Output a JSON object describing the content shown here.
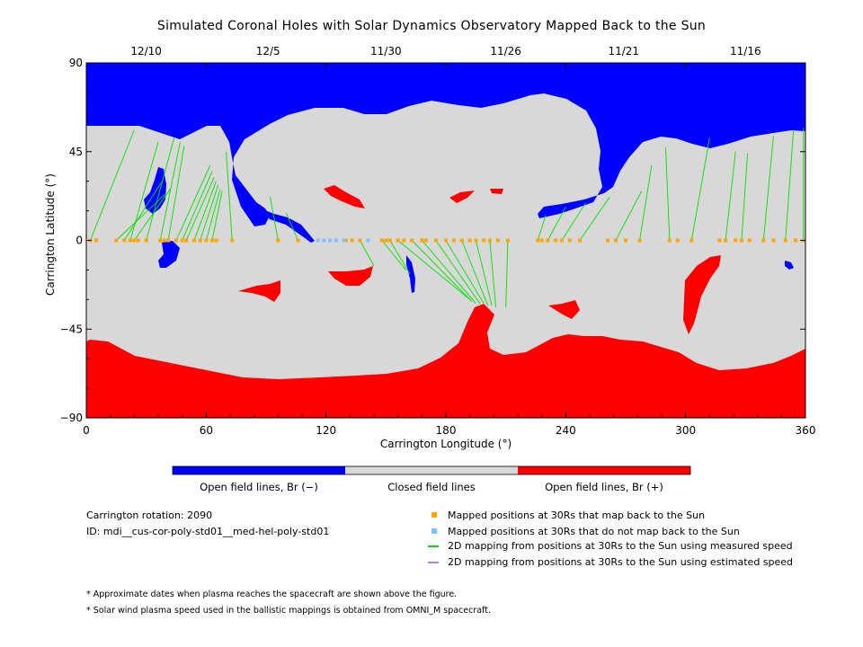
{
  "title": "Simulated Coronal Holes with Solar Dynamics Observatory Mapped Back to the Sun",
  "chart_data": {
    "type": "scatter",
    "xlabel": "Carrington Longitude (°)",
    "ylabel": "Carrington Latitude (°)",
    "xlim": [
      0,
      360
    ],
    "ylim": [
      -90,
      90
    ],
    "x_ticks": [
      "0",
      "60",
      "120",
      "180",
      "240",
      "300",
      "360"
    ],
    "y_ticks": [
      "90",
      "45",
      "0",
      "-45",
      "-90"
    ],
    "x_tick_values": [
      0,
      60,
      120,
      180,
      240,
      300,
      360
    ],
    "y_tick_values": [
      90,
      45,
      0,
      -45,
      -90
    ],
    "top_axis_dates": [
      {
        "date": "12/10",
        "longitude": 30
      },
      {
        "date": "12/5",
        "longitude": 91
      },
      {
        "date": "11/30",
        "longitude": 150
      },
      {
        "date": "11/26",
        "longitude": 210
      },
      {
        "date": "11/21",
        "longitude": 269
      },
      {
        "date": "11/16",
        "longitude": 330
      }
    ],
    "colors": {
      "open_negative": "#0000ff",
      "closed": "#d8d8d8",
      "open_positive": "#ff0000",
      "mapped_point": "#ffa500",
      "unmapped_point": "#7fbfff",
      "measured_line": "#00e000",
      "estimated_line": "#b080ff"
    },
    "mapped_positions_30Rs": [
      2,
      5,
      15,
      19,
      22,
      24,
      26,
      30,
      37,
      39,
      41,
      45,
      48,
      50,
      54,
      57,
      60,
      63,
      65,
      73,
      96,
      106,
      130,
      133,
      137,
      148,
      150,
      152,
      156,
      159,
      163,
      168,
      170,
      175,
      180,
      184,
      188,
      192,
      195,
      199,
      202,
      206,
      211,
      226,
      228,
      231,
      235,
      238,
      242,
      247,
      261,
      265,
      270,
      277,
      292,
      296,
      303,
      317,
      320,
      325,
      328,
      332,
      339,
      344,
      350,
      355,
      359
    ],
    "unmapped_positions_30Rs": [
      116,
      119,
      122,
      125,
      129,
      141
    ],
    "footpoints": [
      {
        "from_lon": 2,
        "to_lon": 24,
        "to_lat": 56
      },
      {
        "from_lon": 15,
        "to_lon": 40,
        "to_lat": 24
      },
      {
        "from_lon": 19,
        "to_lon": 38,
        "to_lat": 30
      },
      {
        "from_lon": 22,
        "to_lon": 36,
        "to_lat": 50
      },
      {
        "from_lon": 24,
        "to_lon": 42,
        "to_lat": 26
      },
      {
        "from_lon": 30,
        "to_lon": 44,
        "to_lat": 52
      },
      {
        "from_lon": 37,
        "to_lon": 47,
        "to_lat": 50
      },
      {
        "from_lon": 41,
        "to_lon": 49,
        "to_lat": 48
      },
      {
        "from_lon": 45,
        "to_lon": 62,
        "to_lat": 38
      },
      {
        "from_lon": 48,
        "to_lon": 63,
        "to_lat": 35
      },
      {
        "from_lon": 50,
        "to_lon": 64,
        "to_lat": 32
      },
      {
        "from_lon": 54,
        "to_lon": 65,
        "to_lat": 30
      },
      {
        "from_lon": 57,
        "to_lon": 66,
        "to_lat": 28
      },
      {
        "from_lon": 60,
        "to_lon": 67,
        "to_lat": 26
      },
      {
        "from_lon": 63,
        "to_lon": 68,
        "to_lat": 25
      },
      {
        "from_lon": 73,
        "to_lon": 70,
        "to_lat": 45
      },
      {
        "from_lon": 96,
        "to_lon": 92,
        "to_lat": 22
      },
      {
        "from_lon": 106,
        "to_lon": 100,
        "to_lat": 14
      },
      {
        "from_lon": 137,
        "to_lon": 144,
        "to_lat": -13
      },
      {
        "from_lon": 148,
        "to_lon": 160,
        "to_lat": -15
      },
      {
        "from_lon": 152,
        "to_lon": 162,
        "to_lat": -17
      },
      {
        "from_lon": 156,
        "to_lon": 192,
        "to_lat": -30
      },
      {
        "from_lon": 163,
        "to_lon": 193,
        "to_lat": -31
      },
      {
        "from_lon": 168,
        "to_lon": 195,
        "to_lat": -32
      },
      {
        "from_lon": 175,
        "to_lon": 197,
        "to_lat": -32
      },
      {
        "from_lon": 180,
        "to_lon": 199,
        "to_lat": -32
      },
      {
        "from_lon": 188,
        "to_lon": 201,
        "to_lat": -33
      },
      {
        "from_lon": 195,
        "to_lon": 203,
        "to_lat": -33
      },
      {
        "from_lon": 202,
        "to_lon": 205,
        "to_lat": -34
      },
      {
        "from_lon": 211,
        "to_lon": 210,
        "to_lat": -34
      },
      {
        "from_lon": 226,
        "to_lon": 230,
        "to_lat": 13
      },
      {
        "from_lon": 231,
        "to_lon": 240,
        "to_lat": 17
      },
      {
        "from_lon": 238,
        "to_lon": 250,
        "to_lat": 19
      },
      {
        "from_lon": 247,
        "to_lon": 262,
        "to_lat": 22
      },
      {
        "from_lon": 265,
        "to_lon": 278,
        "to_lat": 25
      },
      {
        "from_lon": 277,
        "to_lon": 283,
        "to_lat": 38
      },
      {
        "from_lon": 292,
        "to_lon": 290,
        "to_lat": 47
      },
      {
        "from_lon": 303,
        "to_lon": 312,
        "to_lat": 52
      },
      {
        "from_lon": 320,
        "to_lon": 325,
        "to_lat": 45
      },
      {
        "from_lon": 328,
        "to_lon": 331,
        "to_lat": 44
      },
      {
        "from_lon": 339,
        "to_lon": 344,
        "to_lat": 53
      },
      {
        "from_lon": 350,
        "to_lon": 354,
        "to_lat": 56
      },
      {
        "from_lon": 359,
        "to_lon": 359,
        "to_lat": 57
      }
    ]
  },
  "colorbar": {
    "negative_label": "Open field lines, Br (−)",
    "closed_label": "Closed field lines",
    "positive_label": "Open field lines, Br (+)"
  },
  "info": {
    "carrington_rotation": "Carrington rotation: 2090",
    "model_id": "ID: mdi__cus-cor-poly-std01__med-hel-poly-std01"
  },
  "legend": {
    "mapped": "Mapped positions at 30Rs that map back to the Sun",
    "unmapped": "Mapped positions at 30Rs that do not map back to the Sun",
    "measured": "2D mapping from positions at 30Rs to the Sun using measured speed",
    "estimated": "2D mapping from positions at 30Rs to the Sun using estimated speed"
  },
  "notes": {
    "note1": "* Approximate dates when plasma reaches the spacecraft are shown above the figure.",
    "note2": "* Solar wind plasma speed used in the ballistic mappings is obtained from OMNI_M spacecraft."
  }
}
